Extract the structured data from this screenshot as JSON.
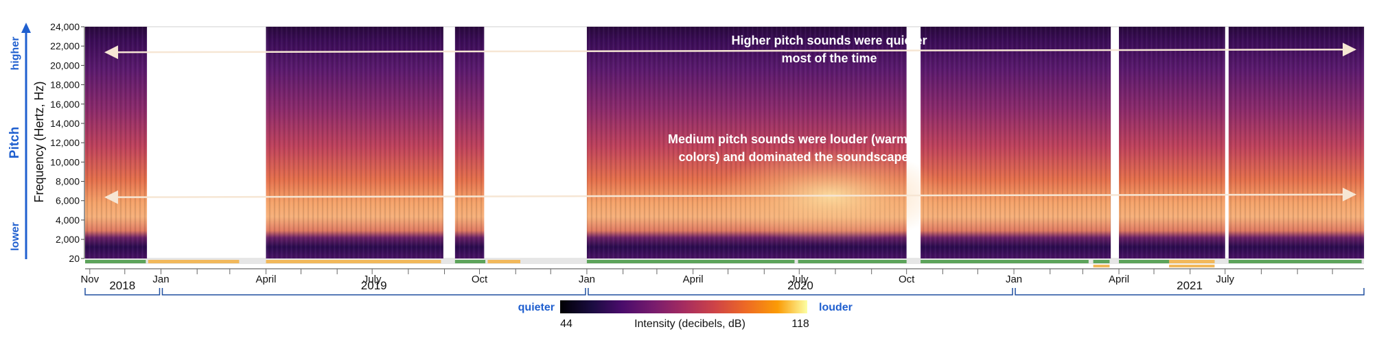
{
  "chart_data": {
    "type": "heatmap",
    "title": "",
    "xlabel": "",
    "ylabel": "Frequency (Hertz, Hz)",
    "pitch_axis": {
      "label": "Pitch",
      "higher": "higher",
      "lower": "lower"
    },
    "y_ticks": [
      20,
      2000,
      4000,
      6000,
      8000,
      10000,
      12000,
      14000,
      16000,
      18000,
      20000,
      22000,
      24000
    ],
    "y_tick_labels": [
      "20",
      "2,000",
      "4,000",
      "6,000",
      "8,000",
      "10,000",
      "12,000",
      "14,000",
      "16,000",
      "18,000",
      "20,000",
      "22,000",
      "24,000"
    ],
    "ylim": [
      20,
      24000
    ],
    "xlim": [
      "2018-10-28",
      "2021-10-28"
    ],
    "month_ticks": [
      {
        "date": "2018-11-01",
        "label": "Nov"
      },
      {
        "date": "2019-01-01",
        "label": "Jan"
      },
      {
        "date": "2019-04-01",
        "label": "April"
      },
      {
        "date": "2019-07-01",
        "label": "July"
      },
      {
        "date": "2019-10-01",
        "label": "Oct"
      },
      {
        "date": "2020-01-01",
        "label": "Jan"
      },
      {
        "date": "2020-04-01",
        "label": "April"
      },
      {
        "date": "2020-07-01",
        "label": "July"
      },
      {
        "date": "2020-10-01",
        "label": "Oct"
      },
      {
        "date": "2021-01-01",
        "label": "Jan"
      },
      {
        "date": "2021-04-01",
        "label": "April"
      },
      {
        "date": "2021-07-01",
        "label": "July"
      }
    ],
    "years": [
      {
        "label": "2018",
        "start": "2018-10-28",
        "end": "2019-01-01"
      },
      {
        "label": "2019",
        "start": "2019-01-01",
        "end": "2020-01-01"
      },
      {
        "label": "2020",
        "start": "2020-01-01",
        "end": "2021-01-01"
      },
      {
        "label": "2021",
        "start": "2021-01-01",
        "end": "2021-10-28"
      }
    ],
    "recording_segments": [
      {
        "start": "2018-10-28",
        "end": "2018-12-20"
      },
      {
        "start": "2019-04-01",
        "end": "2019-08-31"
      },
      {
        "start": "2019-09-10",
        "end": "2019-10-05"
      },
      {
        "start": "2020-01-01",
        "end": "2020-10-01"
      },
      {
        "start": "2020-10-13",
        "end": "2021-03-25"
      },
      {
        "start": "2021-04-01",
        "end": "2021-07-01"
      },
      {
        "start": "2021-07-04",
        "end": "2021-10-28"
      }
    ],
    "status_bars": {
      "green": [
        {
          "start": "2018-10-28",
          "end": "2018-12-19"
        },
        {
          "start": "2019-09-10",
          "end": "2019-10-06"
        },
        {
          "start": "2020-01-01",
          "end": "2020-06-27"
        },
        {
          "start": "2020-06-30",
          "end": "2020-10-01"
        },
        {
          "start": "2020-10-13",
          "end": "2021-03-06"
        },
        {
          "start": "2021-03-10",
          "end": "2021-03-24"
        },
        {
          "start": "2021-04-01",
          "end": "2021-05-14"
        },
        {
          "start": "2021-05-14",
          "end": "2021-06-22"
        },
        {
          "start": "2021-07-04",
          "end": "2021-10-26"
        }
      ],
      "orange": [
        {
          "start": "2018-12-21",
          "end": "2019-03-09"
        },
        {
          "start": "2019-04-01",
          "end": "2019-08-29"
        },
        {
          "start": "2019-10-08",
          "end": "2019-11-05"
        },
        {
          "start": "2021-05-14",
          "end": "2021-06-22"
        }
      ],
      "orange_lower": [
        {
          "start": "2021-03-10",
          "end": "2021-03-24"
        },
        {
          "start": "2021-05-14",
          "end": "2021-06-22"
        }
      ]
    },
    "annotations": [
      {
        "text_lines": [
          "Higher pitch sounds were quieter",
          "most of the time"
        ],
        "arrow_freq": 21500
      },
      {
        "text_lines": [
          "Medium pitch sounds were louder (warmer",
          "colors) and dominated the soundscape"
        ],
        "arrow_freq": 6500
      }
    ],
    "colorbar": {
      "label": "Intensity  (decibels, dB)",
      "min": 44,
      "max": 118,
      "min_label": "44",
      "max_label": "118",
      "low_text": "quieter",
      "high_text": "louder"
    },
    "colors": {
      "axis_accent": "#1f5fcf",
      "green_bar": "#5ca35a",
      "orange_bar": "#f2b85a",
      "arrow": "#f6e6d4",
      "gap_fill": "#e6e6e6"
    }
  }
}
